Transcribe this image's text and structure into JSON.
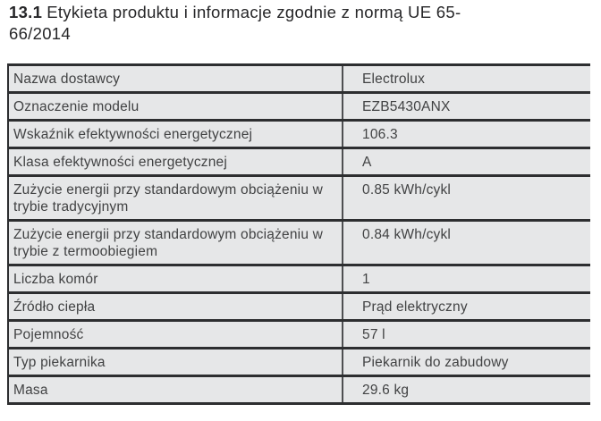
{
  "heading": {
    "section_number": "13.1",
    "title": "Etykieta produktu i informacje zgodnie z normą UE 65-66/2014"
  },
  "table": {
    "rows": [
      {
        "label": "Nazwa dostawcy",
        "value": "Electrolux"
      },
      {
        "label": "Oznaczenie modelu",
        "value": "EZB5430ANX"
      },
      {
        "label": "Wskaźnik efektywności energetycznej",
        "value": "106.3"
      },
      {
        "label": "Klasa efektywności energetycznej",
        "value": "A"
      },
      {
        "label": "Zużycie energii przy standardowym obciążeniu w trybie tradycyjnym",
        "value": "0.85 kWh/cykl"
      },
      {
        "label": "Zużycie energii przy standardowym obciążeniu w trybie z termoobiegiem",
        "value": "0.84 kWh/cykl"
      },
      {
        "label": "Liczba komór",
        "value": "1"
      },
      {
        "label": "Źródło ciepła",
        "value": "Prąd elektryczny"
      },
      {
        "label": "Pojemność",
        "value": "57 l"
      },
      {
        "label": "Typ piekarnika",
        "value": "Piekarnik do zabudowy"
      },
      {
        "label": "Masa",
        "value": "29.6 kg"
      }
    ]
  },
  "colors": {
    "row_background": "#e6e7e8",
    "rule": "#2d2e30",
    "divider": "#4e4f51",
    "text": "#414243",
    "heading_text": "#262628"
  }
}
